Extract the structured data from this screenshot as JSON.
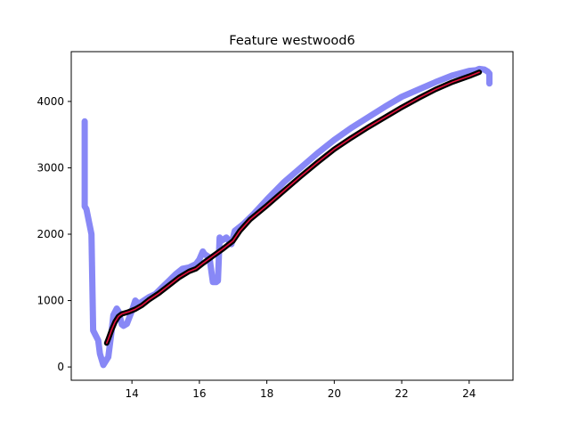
{
  "chart_data": {
    "type": "line",
    "title": "Feature westwood6",
    "xlabel": "",
    "ylabel": "",
    "xlim": [
      12.2,
      25.3
    ],
    "ylim": [
      -200,
      4750
    ],
    "xticks": [
      14,
      16,
      18,
      20,
      22,
      24
    ],
    "yticks": [
      0,
      1000,
      2000,
      3000,
      4000
    ],
    "grid": false,
    "legend": "none",
    "series": [
      {
        "color": "#7b7bf5",
        "style": "thick-translucent",
        "x": [
          12.6,
          12.6,
          12.65,
          12.8,
          12.85,
          13.0,
          13.05,
          13.15,
          13.3,
          13.4,
          13.45,
          13.55,
          13.6,
          13.7,
          13.75,
          13.85,
          14.0,
          14.1,
          14.2,
          14.35,
          14.5,
          14.7,
          14.9,
          15.1,
          15.3,
          15.5,
          15.7,
          15.9,
          16.0,
          16.1,
          16.15,
          16.3,
          16.4,
          16.5,
          16.55,
          16.6,
          16.65,
          16.8,
          16.95,
          17.05,
          17.3,
          17.6,
          18.0,
          18.5,
          19.0,
          19.5,
          20.0,
          20.5,
          21.0,
          21.5,
          22.0,
          22.5,
          23.0,
          23.5,
          24.0,
          24.2,
          24.3,
          24.45,
          24.55,
          24.6,
          24.6
        ],
        "y": [
          3700,
          2420,
          2380,
          2000,
          550,
          400,
          200,
          30,
          150,
          550,
          780,
          880,
          840,
          640,
          620,
          650,
          850,
          1000,
          950,
          1000,
          1050,
          1100,
          1200,
          1300,
          1400,
          1480,
          1500,
          1550,
          1620,
          1740,
          1700,
          1650,
          1280,
          1280,
          1300,
          1950,
          1900,
          1950,
          1850,
          2050,
          2150,
          2300,
          2520,
          2780,
          3000,
          3220,
          3420,
          3600,
          3760,
          3920,
          4070,
          4180,
          4290,
          4390,
          4460,
          4470,
          4490,
          4480,
          4450,
          4420,
          4270
        ]
      },
      {
        "color": "#000000",
        "style": "thick",
        "x": [
          13.25,
          13.3,
          13.4,
          13.5,
          13.6,
          13.7,
          13.9,
          14.1,
          14.3,
          14.5,
          14.8,
          15.1,
          15.4,
          15.7,
          15.9,
          16.1,
          16.4,
          16.7,
          17.0,
          17.2,
          17.5,
          18.0,
          18.5,
          19.0,
          19.5,
          20.0,
          20.5,
          21.0,
          21.5,
          22.0,
          22.5,
          23.0,
          23.5,
          24.0,
          24.3
        ],
        "y": [
          360,
          420,
          560,
          680,
          760,
          800,
          830,
          870,
          930,
          1010,
          1110,
          1230,
          1350,
          1440,
          1480,
          1560,
          1670,
          1780,
          1900,
          2050,
          2220,
          2430,
          2650,
          2870,
          3080,
          3280,
          3450,
          3610,
          3760,
          3910,
          4050,
          4180,
          4290,
          4380,
          4440
        ]
      },
      {
        "color": "#e0103a",
        "style": "thin",
        "x": [
          13.25,
          13.3,
          13.4,
          13.5,
          13.6,
          13.7,
          13.9,
          14.1,
          14.3,
          14.5,
          14.8,
          15.1,
          15.4,
          15.7,
          15.9,
          16.1,
          16.4,
          16.7,
          17.0,
          17.2,
          17.5,
          18.0,
          18.5,
          19.0,
          19.5,
          20.0,
          20.5,
          21.0,
          21.5,
          22.0,
          22.5,
          23.0,
          23.5,
          24.0,
          24.3
        ],
        "y": [
          360,
          420,
          560,
          680,
          760,
          800,
          830,
          870,
          930,
          1010,
          1110,
          1230,
          1350,
          1440,
          1480,
          1560,
          1670,
          1780,
          1900,
          2050,
          2220,
          2430,
          2650,
          2870,
          3080,
          3280,
          3450,
          3610,
          3760,
          3910,
          4050,
          4180,
          4290,
          4380,
          4440
        ]
      }
    ]
  }
}
